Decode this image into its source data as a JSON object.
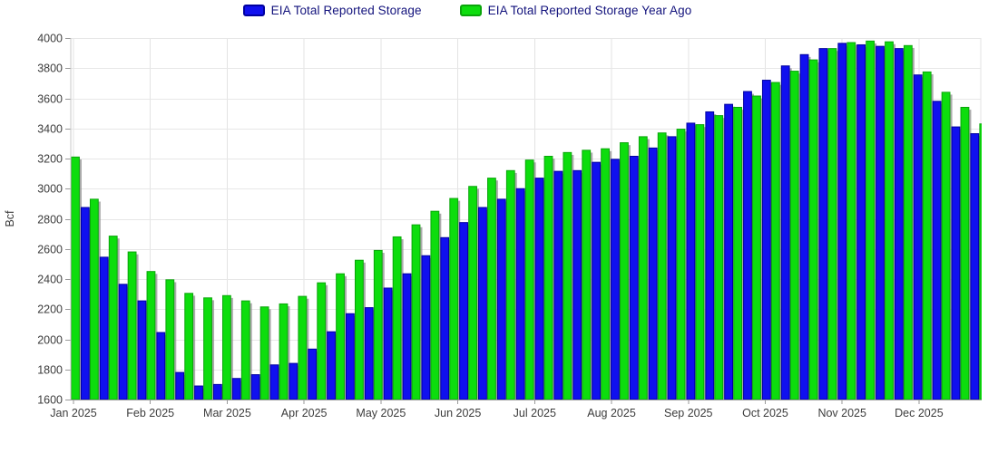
{
  "chart_data": {
    "type": "bar",
    "title": "",
    "ylabel": "Bcf",
    "ylim": [
      1600,
      4000
    ],
    "ytick_step": 200,
    "x_tick_labels": [
      "Jan 2025",
      "Feb 2025",
      "Mar 2025",
      "Apr 2025",
      "May 2025",
      "Jun 2025",
      "Jul 2025",
      "Aug 2025",
      "Sep 2025",
      "Oct 2025",
      "Nov 2025",
      "Dec 2025"
    ],
    "legend_position": "top-center",
    "grid": true,
    "series": [
      {
        "name": "EIA Total Reported Storage",
        "color": "#1010ef",
        "stroke": "#0000a0",
        "values": [
          null,
          2875,
          2545,
          2365,
          2255,
          2045,
          1780,
          1690,
          1700,
          1740,
          1765,
          1830,
          1840,
          1935,
          2050,
          2170,
          2210,
          2340,
          2435,
          2555,
          2675,
          2775,
          2875,
          2930,
          3000,
          3070,
          3115,
          3120,
          3175,
          3195,
          3215,
          3270,
          3345,
          3435,
          3510,
          3560,
          3645,
          3720,
          3815,
          3890,
          3930,
          3965,
          3955,
          3945,
          3930,
          3755,
          3580,
          3410,
          3365
        ]
      },
      {
        "name": "EIA Total Reported Storage Year Ago",
        "color": "#0ddd0d",
        "stroke": "#0aa50a",
        "values": [
          3210,
          2930,
          2685,
          2580,
          2450,
          2395,
          2305,
          2275,
          2290,
          2255,
          2215,
          2235,
          2285,
          2375,
          2435,
          2525,
          2590,
          2680,
          2760,
          2850,
          2935,
          3015,
          3070,
          3120,
          3190,
          3215,
          3240,
          3255,
          3265,
          3305,
          3345,
          3370,
          3395,
          3425,
          3485,
          3540,
          3615,
          3705,
          3780,
          3855,
          3930,
          3970,
          3980,
          3975,
          3950,
          3775,
          3640,
          3540,
          3430
        ]
      }
    ]
  },
  "colors": {
    "background": "#ffffff",
    "h_gridline": "#e7e7e7",
    "v_gridline": "#e3e3e3",
    "axis_line": "#9e9e9e",
    "left_axis_line": "#c9c9c9",
    "tick_mark": "#999999",
    "axis_text": "#3c3c3c",
    "legend_text": "#12127c",
    "bar_shadow": "#8f8f8f"
  }
}
